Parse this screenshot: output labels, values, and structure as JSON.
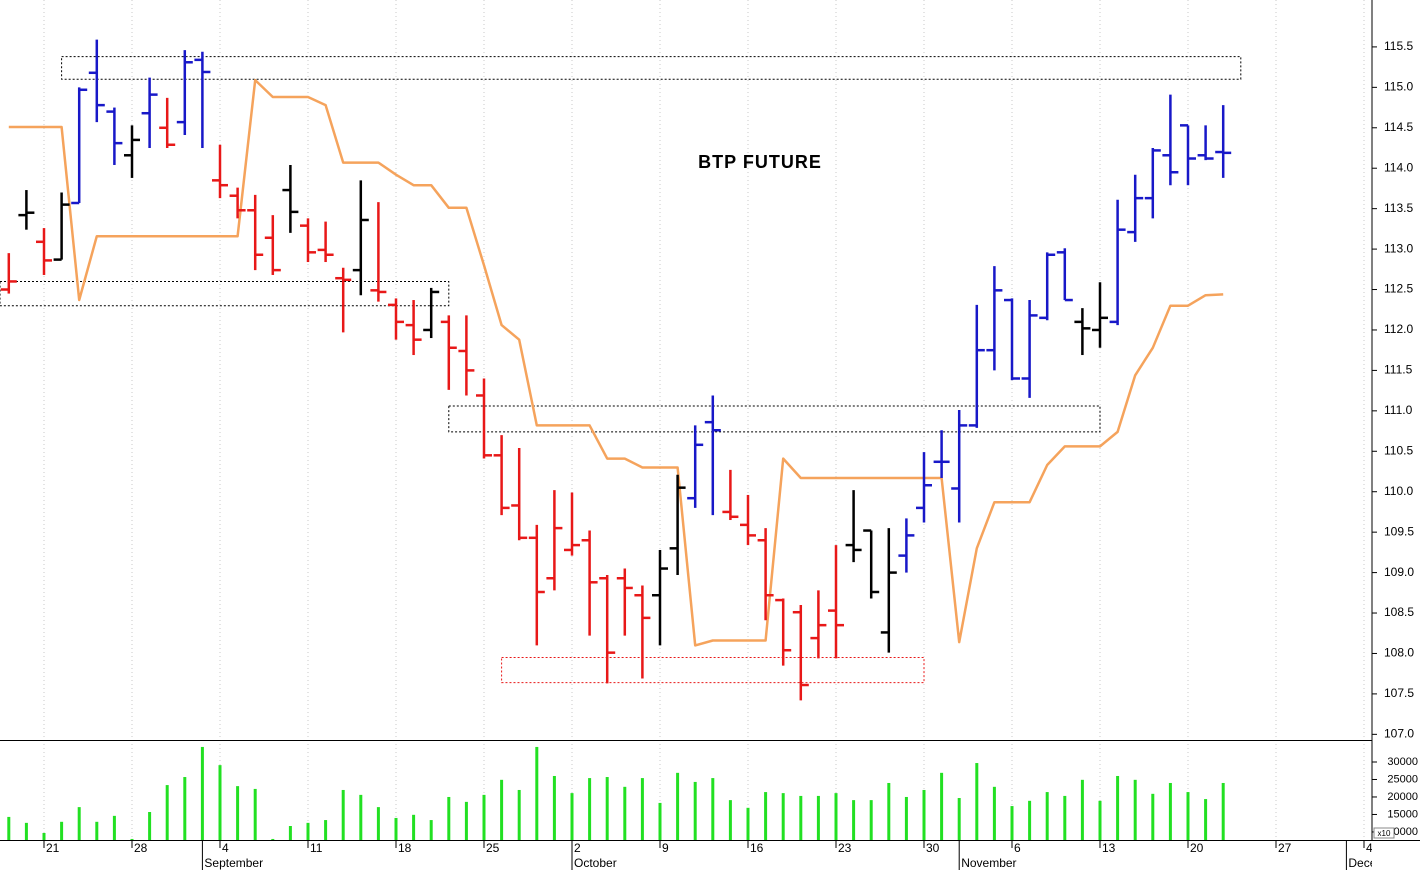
{
  "chart_data": {
    "type": "ohlc",
    "title": "BTP FUTURE",
    "categories": [
      null,
      null,
      "21",
      null,
      null,
      null,
      null,
      "28",
      null,
      null,
      null,
      null,
      "4",
      null,
      null,
      null,
      null,
      "11",
      null,
      null,
      null,
      null,
      "18",
      null,
      null,
      null,
      null,
      "25",
      null,
      null,
      null,
      null,
      "2",
      null,
      null,
      null,
      null,
      "9",
      null,
      null,
      null,
      null,
      "16",
      null,
      null,
      null,
      null,
      "23",
      null,
      null,
      null,
      null,
      "30",
      null,
      null,
      null,
      null,
      "6",
      null,
      null,
      null,
      null,
      "13",
      null,
      null,
      null,
      null,
      "20",
      null,
      null,
      null,
      null,
      "27",
      null,
      null,
      null,
      null,
      "4"
    ],
    "month_labels": [
      null,
      null,
      null,
      null,
      null,
      null,
      null,
      null,
      null,
      null,
      null,
      "September",
      null,
      null,
      null,
      null,
      null,
      null,
      null,
      null,
      null,
      null,
      null,
      null,
      null,
      null,
      null,
      null,
      null,
      null,
      null,
      null,
      "October",
      null,
      null,
      null,
      null,
      null,
      null,
      null,
      null,
      null,
      null,
      null,
      null,
      null,
      null,
      null,
      null,
      null,
      null,
      null,
      null,
      null,
      "November",
      null,
      null,
      null,
      null,
      null,
      null,
      null,
      null,
      null,
      null,
      null,
      null,
      null,
      null,
      null,
      null,
      null,
      null,
      null,
      null,
      null,
      "December",
      null
    ],
    "open": [
      112.5,
      113.42,
      113.09,
      112.87,
      113.57,
      115.18,
      114.7,
      114.16,
      114.68,
      114.5,
      114.57,
      115.34,
      113.85,
      113.66,
      113.48,
      113.14,
      113.73,
      113.29,
      112.99,
      112.64,
      112.74,
      112.49,
      112.31,
      112.06,
      112.0,
      112.1,
      111.74,
      111.19,
      110.45,
      109.83,
      109.43,
      108.93,
      109.28,
      109.4,
      108.93,
      108.93,
      108.72,
      108.72,
      109.3,
      109.92,
      110.86,
      109.75,
      109.59,
      109.4,
      108.66,
      108.51,
      108.19,
      108.53,
      109.34,
      109.52,
      108.26,
      109.21,
      109.8,
      110.37,
      110.04,
      110.82,
      111.75,
      112.37,
      111.4,
      112.15,
      112.96,
      112.1,
      112.0,
      112.1,
      113.21,
      113.63,
      114.16,
      114.53,
      114.16,
      114.2,
      null,
      null,
      null,
      null,
      null,
      null,
      null,
      null
    ],
    "high": [
      112.95,
      113.73,
      113.26,
      113.7,
      115.0,
      115.59,
      114.75,
      114.53,
      115.12,
      114.87,
      115.46,
      115.44,
      114.29,
      113.76,
      113.67,
      113.42,
      114.04,
      113.38,
      113.34,
      112.77,
      113.85,
      113.58,
      112.39,
      112.37,
      112.52,
      112.18,
      112.18,
      111.4,
      110.7,
      110.54,
      109.59,
      110.02,
      109.99,
      109.52,
      108.97,
      109.05,
      108.84,
      109.28,
      110.21,
      110.82,
      111.19,
      110.27,
      109.96,
      109.55,
      108.68,
      108.6,
      108.78,
      109.34,
      110.02,
      109.52,
      109.55,
      109.67,
      110.49,
      110.76,
      111.01,
      112.31,
      112.79,
      112.39,
      112.37,
      112.96,
      113.01,
      112.27,
      112.59,
      113.61,
      113.92,
      114.25,
      114.91,
      114.53,
      114.53,
      114.78,
      null,
      null,
      null,
      null,
      null,
      null,
      null,
      null
    ],
    "low": [
      112.45,
      113.24,
      112.68,
      112.87,
      113.57,
      114.57,
      114.04,
      113.88,
      114.25,
      114.25,
      114.41,
      114.25,
      113.63,
      113.38,
      112.74,
      112.68,
      113.2,
      112.84,
      112.84,
      111.97,
      112.43,
      112.35,
      111.88,
      111.69,
      111.9,
      111.26,
      111.19,
      110.41,
      109.71,
      109.4,
      108.1,
      108.78,
      109.21,
      108.22,
      107.63,
      108.22,
      107.69,
      108.1,
      108.97,
      109.8,
      109.71,
      109.65,
      109.34,
      108.41,
      107.85,
      107.42,
      107.94,
      107.94,
      109.13,
      108.68,
      108.01,
      109.0,
      109.62,
      110.17,
      109.62,
      110.79,
      111.5,
      111.38,
      111.16,
      112.12,
      112.37,
      111.69,
      111.78,
      112.06,
      113.09,
      113.38,
      113.79,
      113.79,
      114.1,
      113.88,
      null,
      null,
      null,
      null,
      null,
      null,
      null,
      null
    ],
    "close": [
      112.6,
      113.45,
      112.86,
      113.55,
      114.97,
      114.78,
      114.31,
      114.35,
      114.91,
      114.29,
      115.31,
      115.19,
      113.79,
      113.48,
      112.93,
      112.74,
      113.46,
      112.96,
      112.93,
      112.62,
      113.36,
      112.47,
      112.1,
      111.88,
      112.47,
      111.78,
      111.5,
      110.45,
      109.8,
      109.43,
      108.76,
      109.55,
      109.34,
      108.88,
      108.01,
      108.81,
      108.44,
      109.05,
      110.05,
      110.58,
      110.76,
      109.69,
      109.46,
      108.72,
      108.04,
      107.61,
      108.35,
      108.35,
      109.28,
      108.76,
      109.0,
      109.46,
      110.08,
      110.37,
      110.82,
      111.75,
      112.49,
      111.4,
      112.18,
      112.93,
      112.37,
      112.02,
      112.15,
      113.24,
      113.63,
      114.22,
      113.95,
      114.12,
      114.12,
      114.19,
      null,
      null,
      null,
      null,
      null,
      null,
      null,
      null
    ],
    "bar_colors": [
      "#e81818",
      "#000000",
      "#e81818",
      "#000000",
      "#1818c8",
      "#1818c8",
      "#1818c8",
      "#000000",
      "#1818c8",
      "#e81818",
      "#1818c8",
      "#1818c8",
      "#e81818",
      "#e81818",
      "#e81818",
      "#e81818",
      "#000000",
      "#e81818",
      "#e81818",
      "#e81818",
      "#000000",
      "#e81818",
      "#e81818",
      "#e81818",
      "#000000",
      "#e81818",
      "#e81818",
      "#e81818",
      "#e81818",
      "#e81818",
      "#e81818",
      "#e81818",
      "#e81818",
      "#e81818",
      "#e81818",
      "#e81818",
      "#e81818",
      "#000000",
      "#000000",
      "#1818c8",
      "#1818c8",
      "#e81818",
      "#e81818",
      "#e81818",
      "#e81818",
      "#e81818",
      "#e81818",
      "#e81818",
      "#000000",
      "#000000",
      "#000000",
      "#1818c8",
      "#1818c8",
      "#1818c8",
      "#1818c8",
      "#1818c8",
      "#1818c8",
      "#1818c8",
      "#1818c8",
      "#1818c8",
      "#1818c8",
      "#000000",
      "#000000",
      "#1818c8",
      "#1818c8",
      "#1818c8",
      "#1818c8",
      "#1818c8",
      "#1818c8",
      "#1818c8",
      null,
      null,
      null,
      null,
      null,
      null,
      null,
      null
    ],
    "line": {
      "color": "#f5a35c",
      "values": [
        114.51,
        114.51,
        114.51,
        114.51,
        112.37,
        113.16,
        113.16,
        113.16,
        113.16,
        113.16,
        113.16,
        113.16,
        113.16,
        113.16,
        115.09,
        114.88,
        114.88,
        114.88,
        114.78,
        114.07,
        114.07,
        114.07,
        113.92,
        113.79,
        113.79,
        113.51,
        113.51,
        112.8,
        112.06,
        111.88,
        110.82,
        110.82,
        110.82,
        110.82,
        110.41,
        110.41,
        110.3,
        110.3,
        110.3,
        108.1,
        108.16,
        108.16,
        108.16,
        108.16,
        110.41,
        110.17,
        110.17,
        110.17,
        110.17,
        110.17,
        110.17,
        110.17,
        110.17,
        110.17,
        108.14,
        109.3,
        109.87,
        109.87,
        109.87,
        110.33,
        110.56,
        110.56,
        110.56,
        110.74,
        111.44,
        111.78,
        112.3,
        112.3,
        112.43,
        112.44,
        null,
        null,
        null,
        null,
        null,
        null,
        null,
        null
      ]
    },
    "ylim": [
      106.93,
      116.08
    ],
    "yticks": [
      {
        "value": 107,
        "label": "107.0"
      },
      107.5,
      {
        "value": 108,
        "label": "108.0"
      },
      108.5,
      {
        "value": 109,
        "label": "109.0"
      },
      109.5,
      {
        "value": 110,
        "label": "110.0"
      },
      110.5,
      {
        "value": 111,
        "label": "111.0"
      },
      111.5,
      {
        "value": 112,
        "label": "112.0"
      },
      112.5,
      {
        "value": 113,
        "label": "113.0"
      },
      113.5,
      {
        "value": 114,
        "label": "114.0"
      },
      114.5,
      {
        "value": 115,
        "label": "115.0"
      },
      115.5
    ],
    "zones": [
      {
        "low": 115.1,
        "high": 115.38,
        "start": 3,
        "end": 70,
        "color": "#000000"
      },
      {
        "low": 112.3,
        "high": 112.6,
        "start": -0.5,
        "end": 25,
        "color": "#000000"
      },
      {
        "low": 110.74,
        "high": 111.06,
        "start": 25,
        "end": 62,
        "color": "#000000"
      },
      {
        "low": 107.64,
        "high": 107.95,
        "start": 28,
        "end": 52,
        "color": "#e81818"
      }
    ],
    "volume": {
      "color": "#22e022",
      "unit_label": "x10",
      "ylim": [
        7700,
        36000
      ],
      "yticks": [
        10000,
        15000,
        20000,
        25000,
        30000
      ],
      "values": [
        14300,
        12600,
        9700,
        12900,
        17100,
        12900,
        14600,
        8000,
        15700,
        23400,
        25700,
        34300,
        29100,
        23100,
        22300,
        8000,
        11700,
        12600,
        13400,
        22000,
        20600,
        17100,
        14000,
        14900,
        13400,
        20000,
        18600,
        20600,
        24900,
        22000,
        34300,
        26000,
        21100,
        25400,
        25700,
        22900,
        25400,
        18300,
        26900,
        24300,
        25400,
        19100,
        16900,
        21400,
        21100,
        20300,
        20300,
        21100,
        19100,
        19100,
        24000,
        20000,
        22000,
        26900,
        19700,
        29700,
        22900,
        17400,
        18900,
        21400,
        20300,
        24900,
        18900,
        26000,
        24900,
        20900,
        24000,
        21400,
        19400,
        24000,
        null,
        null,
        null,
        null,
        null,
        null,
        null,
        null
      ]
    }
  }
}
